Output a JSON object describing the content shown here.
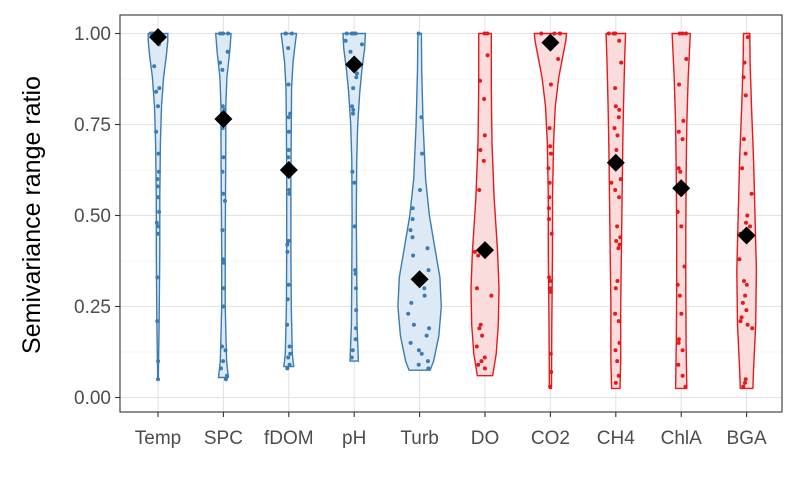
{
  "chart_data": {
    "type": "violin",
    "ylabel": "Semivariance range ratio",
    "xlabel": "",
    "ylim": [
      0,
      1
    ],
    "y_ticks": [
      "0.00",
      "0.25",
      "0.50",
      "0.75",
      "1.00"
    ],
    "grid": true,
    "categories": [
      "Temp",
      "SPC",
      "fDOM",
      "pH",
      "Turb",
      "DO",
      "CO2",
      "CH4",
      "ChlA",
      "BGA"
    ],
    "colors": {
      "blue_line": "#3a7cb4",
      "blue_fill": "#dde9f4",
      "red_line": "#e41a1c",
      "red_fill": "#fadcdc",
      "mean_marker": "#000000"
    },
    "series": [
      {
        "category": "Temp",
        "group": "blue",
        "mean": 0.99,
        "points": [
          0.05,
          0.1,
          0.21,
          0.33,
          0.45,
          0.47,
          0.48,
          0.51,
          0.55,
          0.58,
          0.6,
          0.62,
          0.67,
          0.73,
          0.8,
          0.84,
          0.85,
          0.91,
          0.97,
          0.99,
          1.0,
          1.0
        ],
        "violin": [
          [
            0.05,
            0.01
          ],
          [
            0.2,
            0.03
          ],
          [
            0.4,
            0.05
          ],
          [
            0.55,
            0.05
          ],
          [
            0.7,
            0.07
          ],
          [
            0.8,
            0.1
          ],
          [
            0.88,
            0.16
          ],
          [
            0.94,
            0.24
          ],
          [
            0.98,
            0.28
          ],
          [
            1.0,
            0.28
          ]
        ]
      },
      {
        "category": "SPC",
        "group": "blue",
        "mean": 0.765,
        "points": [
          0.05,
          0.06,
          0.08,
          0.1,
          0.13,
          0.14,
          0.25,
          0.3,
          0.37,
          0.38,
          0.46,
          0.54,
          0.56,
          0.62,
          0.66,
          0.74,
          0.78,
          0.79,
          0.8,
          0.9,
          0.92,
          0.95,
          1.0,
          1.0,
          1.0
        ],
        "violin": [
          [
            0.055,
            0.14
          ],
          [
            0.1,
            0.09
          ],
          [
            0.25,
            0.05
          ],
          [
            0.4,
            0.05
          ],
          [
            0.55,
            0.06
          ],
          [
            0.7,
            0.07
          ],
          [
            0.8,
            0.07
          ],
          [
            0.88,
            0.1
          ],
          [
            0.95,
            0.18
          ],
          [
            1.0,
            0.22
          ]
        ]
      },
      {
        "category": "fDOM",
        "group": "blue",
        "mean": 0.625,
        "points": [
          0.08,
          0.09,
          0.11,
          0.12,
          0.14,
          0.2,
          0.27,
          0.31,
          0.4,
          0.42,
          0.43,
          0.56,
          0.57,
          0.62,
          0.66,
          0.68,
          0.73,
          0.77,
          0.78,
          0.86,
          0.96,
          1.0,
          1.0,
          1.0
        ],
        "violin": [
          [
            0.085,
            0.14
          ],
          [
            0.12,
            0.1
          ],
          [
            0.25,
            0.07
          ],
          [
            0.4,
            0.06
          ],
          [
            0.6,
            0.06
          ],
          [
            0.75,
            0.07
          ],
          [
            0.85,
            0.08
          ],
          [
            0.92,
            0.12
          ],
          [
            0.97,
            0.18
          ],
          [
            1.0,
            0.22
          ]
        ]
      },
      {
        "category": "pH",
        "group": "blue",
        "mean": 0.915,
        "points": [
          0.11,
          0.13,
          0.16,
          0.19,
          0.24,
          0.3,
          0.34,
          0.35,
          0.47,
          0.59,
          0.62,
          0.78,
          0.79,
          0.8,
          0.85,
          0.88,
          0.89,
          0.95,
          0.97,
          0.98,
          1.0,
          1.0,
          1.0,
          1.0
        ],
        "violin": [
          [
            0.1,
            0.12
          ],
          [
            0.2,
            0.08
          ],
          [
            0.35,
            0.07
          ],
          [
            0.5,
            0.06
          ],
          [
            0.65,
            0.07
          ],
          [
            0.75,
            0.1
          ],
          [
            0.84,
            0.16
          ],
          [
            0.9,
            0.22
          ],
          [
            0.96,
            0.3
          ],
          [
            1.0,
            0.32
          ]
        ]
      },
      {
        "category": "Turb",
        "group": "blue",
        "mean": 0.325,
        "points": [
          0.08,
          0.09,
          0.1,
          0.12,
          0.13,
          0.15,
          0.17,
          0.19,
          0.2,
          0.23,
          0.26,
          0.28,
          0.3,
          0.33,
          0.35,
          0.39,
          0.41,
          0.44,
          0.46,
          0.49,
          0.52,
          0.57,
          0.67,
          0.77,
          1.0
        ],
        "violin": [
          [
            0.075,
            0.3
          ],
          [
            0.1,
            0.4
          ],
          [
            0.17,
            0.55
          ],
          [
            0.25,
            0.62
          ],
          [
            0.33,
            0.58
          ],
          [
            0.42,
            0.42
          ],
          [
            0.5,
            0.28
          ],
          [
            0.6,
            0.17
          ],
          [
            0.75,
            0.1
          ],
          [
            0.9,
            0.06
          ],
          [
            1.0,
            0.05
          ]
        ]
      },
      {
        "category": "DO",
        "group": "red",
        "mean": 0.405,
        "points": [
          0.08,
          0.09,
          0.1,
          0.11,
          0.14,
          0.17,
          0.19,
          0.2,
          0.28,
          0.3,
          0.39,
          0.4,
          0.41,
          0.57,
          0.65,
          0.68,
          0.72,
          0.82,
          0.87,
          0.94,
          1.0,
          1.0
        ],
        "violin": [
          [
            0.06,
            0.22
          ],
          [
            0.12,
            0.32
          ],
          [
            0.2,
            0.38
          ],
          [
            0.3,
            0.4
          ],
          [
            0.4,
            0.36
          ],
          [
            0.55,
            0.26
          ],
          [
            0.7,
            0.2
          ],
          [
            0.85,
            0.18
          ],
          [
            0.95,
            0.18
          ],
          [
            1.0,
            0.18
          ]
        ]
      },
      {
        "category": "CO2",
        "group": "red",
        "mean": 0.975,
        "points": [
          0.03,
          0.07,
          0.12,
          0.29,
          0.3,
          0.32,
          0.33,
          0.45,
          0.49,
          0.52,
          0.55,
          0.59,
          0.63,
          0.67,
          0.69,
          0.74,
          0.86,
          0.93,
          0.96,
          0.97,
          1.0,
          1.0,
          1.0
        ],
        "violin": [
          [
            0.025,
            0.03
          ],
          [
            0.2,
            0.04
          ],
          [
            0.4,
            0.06
          ],
          [
            0.55,
            0.06
          ],
          [
            0.7,
            0.09
          ],
          [
            0.8,
            0.14
          ],
          [
            0.88,
            0.24
          ],
          [
            0.94,
            0.36
          ],
          [
            0.98,
            0.44
          ],
          [
            1.0,
            0.46
          ]
        ]
      },
      {
        "category": "CH4",
        "group": "red",
        "mean": 0.645,
        "points": [
          0.04,
          0.06,
          0.1,
          0.13,
          0.15,
          0.21,
          0.23,
          0.3,
          0.32,
          0.41,
          0.42,
          0.43,
          0.44,
          0.47,
          0.55,
          0.57,
          0.59,
          0.6,
          0.68,
          0.72,
          0.74,
          0.77,
          0.79,
          0.8,
          0.85,
          0.92,
          0.98,
          1.0,
          1.0,
          1.0
        ],
        "violin": [
          [
            0.025,
            0.12
          ],
          [
            0.1,
            0.14
          ],
          [
            0.25,
            0.14
          ],
          [
            0.4,
            0.16
          ],
          [
            0.55,
            0.18
          ],
          [
            0.7,
            0.2
          ],
          [
            0.8,
            0.22
          ],
          [
            0.88,
            0.24
          ],
          [
            0.95,
            0.26
          ],
          [
            1.0,
            0.28
          ]
        ]
      },
      {
        "category": "ChlA",
        "group": "red",
        "mean": 0.575,
        "points": [
          0.03,
          0.06,
          0.09,
          0.13,
          0.15,
          0.16,
          0.23,
          0.28,
          0.31,
          0.36,
          0.47,
          0.51,
          0.62,
          0.63,
          0.71,
          0.73,
          0.76,
          0.86,
          0.93,
          1.0,
          1.0,
          1.0
        ],
        "violin": [
          [
            0.025,
            0.16
          ],
          [
            0.15,
            0.14
          ],
          [
            0.3,
            0.13
          ],
          [
            0.45,
            0.13
          ],
          [
            0.6,
            0.14
          ],
          [
            0.75,
            0.16
          ],
          [
            0.88,
            0.2
          ],
          [
            0.96,
            0.24
          ],
          [
            1.0,
            0.26
          ]
        ]
      },
      {
        "category": "BGA",
        "group": "red",
        "mean": 0.445,
        "points": [
          0.03,
          0.04,
          0.05,
          0.19,
          0.2,
          0.21,
          0.22,
          0.24,
          0.26,
          0.28,
          0.31,
          0.32,
          0.38,
          0.45,
          0.47,
          0.48,
          0.5,
          0.56,
          0.63,
          0.67,
          0.71,
          0.83,
          0.88,
          0.92,
          0.99
        ],
        "violin": [
          [
            0.025,
            0.18
          ],
          [
            0.08,
            0.2
          ],
          [
            0.2,
            0.26
          ],
          [
            0.35,
            0.28
          ],
          [
            0.5,
            0.24
          ],
          [
            0.65,
            0.2
          ],
          [
            0.8,
            0.14
          ],
          [
            0.92,
            0.1
          ],
          [
            1.0,
            0.09
          ]
        ]
      }
    ]
  }
}
